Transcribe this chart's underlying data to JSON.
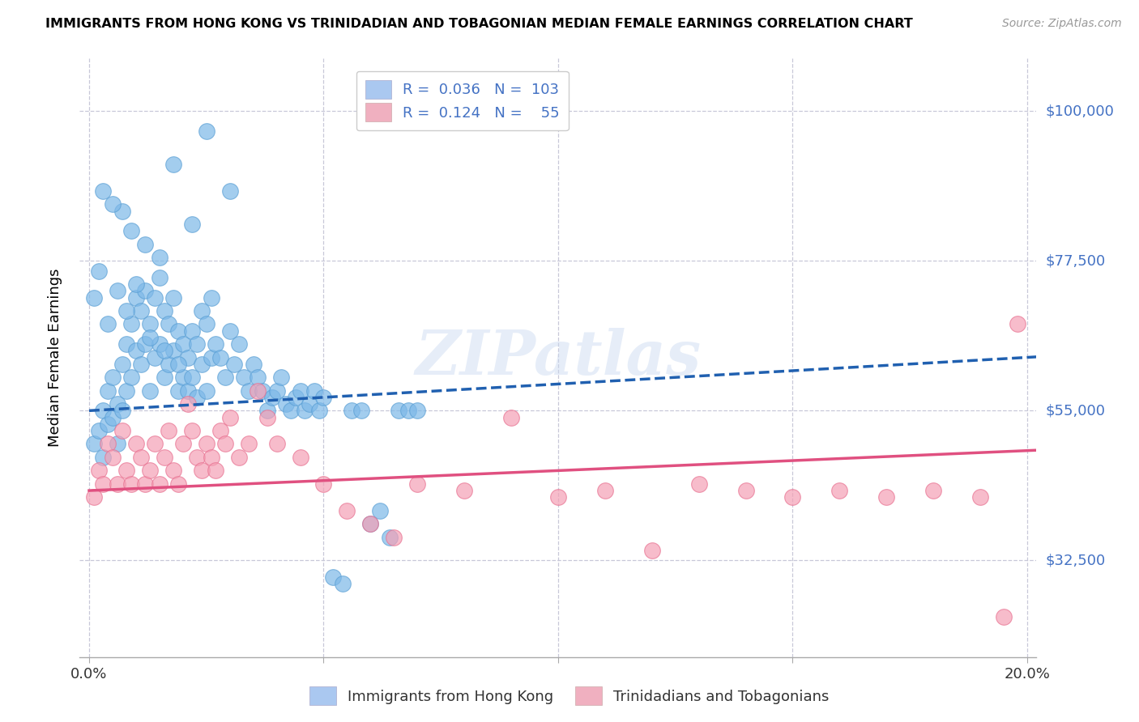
{
  "title": "IMMIGRANTS FROM HONG KONG VS TRINIDADIAN AND TOBAGONIAN MEDIAN FEMALE EARNINGS CORRELATION CHART",
  "source": "Source: ZipAtlas.com",
  "ylabel": "Median Female Earnings",
  "xlim": [
    -0.002,
    0.202
  ],
  "ylim": [
    18000,
    108000
  ],
  "yticks": [
    32500,
    55000,
    77500,
    100000
  ],
  "ytick_labels": [
    "$32,500",
    "$55,000",
    "$77,500",
    "$100,000"
  ],
  "xticks": [
    0.0,
    0.05,
    0.1,
    0.15,
    0.2
  ],
  "xtick_labels": [
    "0.0%",
    "",
    "",
    "",
    "20.0%"
  ],
  "watermark": "ZIPatlas",
  "series1_color": "#7db8e8",
  "series2_color": "#f4a0b5",
  "series1_edge": "#5a9fd4",
  "series2_edge": "#e87090",
  "trendline1_color": "#2060b0",
  "trendline2_color": "#e05080",
  "background_color": "#ffffff",
  "grid_color": "#c8c8d8",
  "legend_box_color1": "#aac8f0",
  "legend_box_color2": "#f0b0c0",
  "label_color": "#4472c4",
  "hk_x": [
    0.001,
    0.002,
    0.003,
    0.003,
    0.004,
    0.004,
    0.005,
    0.005,
    0.006,
    0.006,
    0.007,
    0.007,
    0.008,
    0.008,
    0.009,
    0.009,
    0.01,
    0.01,
    0.011,
    0.011,
    0.012,
    0.012,
    0.013,
    0.013,
    0.014,
    0.014,
    0.015,
    0.015,
    0.016,
    0.016,
    0.017,
    0.017,
    0.018,
    0.018,
    0.019,
    0.019,
    0.02,
    0.02,
    0.021,
    0.021,
    0.022,
    0.022,
    0.023,
    0.023,
    0.024,
    0.024,
    0.025,
    0.025,
    0.026,
    0.026,
    0.027,
    0.028,
    0.029,
    0.03,
    0.031,
    0.032,
    0.033,
    0.034,
    0.035,
    0.036,
    0.037,
    0.038,
    0.039,
    0.04,
    0.041,
    0.042,
    0.043,
    0.044,
    0.045,
    0.046,
    0.047,
    0.048,
    0.049,
    0.05,
    0.052,
    0.054,
    0.056,
    0.058,
    0.06,
    0.062,
    0.064,
    0.066,
    0.068,
    0.07,
    0.025,
    0.03,
    0.022,
    0.018,
    0.015,
    0.012,
    0.009,
    0.007,
    0.005,
    0.003,
    0.002,
    0.001,
    0.004,
    0.006,
    0.008,
    0.01,
    0.013,
    0.016,
    0.019
  ],
  "hk_y": [
    50000,
    52000,
    55000,
    48000,
    53000,
    58000,
    60000,
    54000,
    56000,
    50000,
    62000,
    55000,
    65000,
    58000,
    68000,
    60000,
    72000,
    64000,
    70000,
    62000,
    73000,
    65000,
    68000,
    58000,
    72000,
    63000,
    75000,
    65000,
    70000,
    60000,
    68000,
    62000,
    72000,
    64000,
    67000,
    58000,
    65000,
    60000,
    63000,
    58000,
    67000,
    60000,
    65000,
    57000,
    70000,
    62000,
    68000,
    58000,
    72000,
    63000,
    65000,
    63000,
    60000,
    67000,
    62000,
    65000,
    60000,
    58000,
    62000,
    60000,
    58000,
    55000,
    57000,
    58000,
    60000,
    56000,
    55000,
    57000,
    58000,
    55000,
    56000,
    58000,
    55000,
    57000,
    30000,
    29000,
    55000,
    55000,
    38000,
    40000,
    36000,
    55000,
    55000,
    55000,
    97000,
    88000,
    83000,
    92000,
    78000,
    80000,
    82000,
    85000,
    86000,
    88000,
    76000,
    72000,
    68000,
    73000,
    70000,
    74000,
    66000,
    64000,
    62000
  ],
  "tt_x": [
    0.001,
    0.002,
    0.003,
    0.004,
    0.005,
    0.006,
    0.007,
    0.008,
    0.009,
    0.01,
    0.011,
    0.012,
    0.013,
    0.014,
    0.015,
    0.016,
    0.017,
    0.018,
    0.019,
    0.02,
    0.021,
    0.022,
    0.023,
    0.024,
    0.025,
    0.026,
    0.027,
    0.028,
    0.029,
    0.03,
    0.032,
    0.034,
    0.036,
    0.038,
    0.04,
    0.045,
    0.05,
    0.055,
    0.06,
    0.065,
    0.07,
    0.08,
    0.09,
    0.1,
    0.11,
    0.12,
    0.13,
    0.14,
    0.15,
    0.16,
    0.17,
    0.18,
    0.19,
    0.195,
    0.198
  ],
  "tt_y": [
    42000,
    46000,
    44000,
    50000,
    48000,
    44000,
    52000,
    46000,
    44000,
    50000,
    48000,
    44000,
    46000,
    50000,
    44000,
    48000,
    52000,
    46000,
    44000,
    50000,
    56000,
    52000,
    48000,
    46000,
    50000,
    48000,
    46000,
    52000,
    50000,
    54000,
    48000,
    50000,
    58000,
    54000,
    50000,
    48000,
    44000,
    40000,
    38000,
    36000,
    44000,
    43000,
    54000,
    42000,
    43000,
    34000,
    44000,
    43000,
    42000,
    43000,
    42000,
    43000,
    42000,
    24000,
    68000
  ]
}
